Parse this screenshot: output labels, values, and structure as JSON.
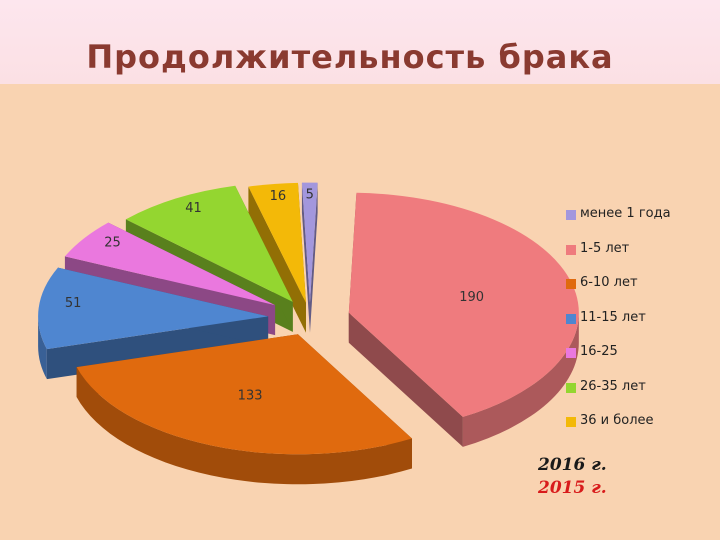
{
  "title": "Продолжительность  брака",
  "chart_data": {
    "type": "pie",
    "exploded": true,
    "three_d": true,
    "legend_position": "right",
    "slices": [
      {
        "label": "менее 1 года",
        "value": 5,
        "color": "#a397dd"
      },
      {
        "label": "1-5 лет",
        "value": 190,
        "color": "#ef7b7e"
      },
      {
        "label": "6-10 лет",
        "value": 133,
        "color": "#e06a0e"
      },
      {
        "label": "11-15 лет",
        "value": 51,
        "color": "#4f86d0"
      },
      {
        "label": "16-25",
        "value": 25,
        "color": "#ea78de"
      },
      {
        "label": "26-35 лет",
        "value": 41,
        "color": "#94d630"
      },
      {
        "label": "36 и более",
        "value": 16,
        "color": "#f3b908"
      }
    ]
  },
  "notes": {
    "year_2016": "2016 г.",
    "year_2015": "2015 г."
  }
}
